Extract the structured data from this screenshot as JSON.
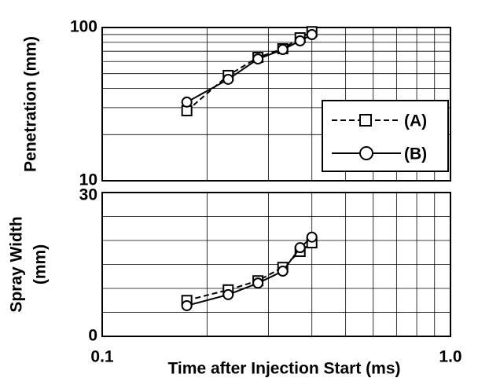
{
  "chart_data": [
    {
      "type": "line",
      "ylabel": [
        "Penetration (mm)"
      ],
      "x": [
        0.175,
        0.23,
        0.28,
        0.33,
        0.37,
        0.4
      ],
      "series": [
        {
          "name": "(A)",
          "color": "#000000",
          "marker": "square",
          "dash": true,
          "values": [
            28.6,
            48.7,
            63.8,
            72.7,
            85.7,
            94
          ]
        },
        {
          "name": "(B)",
          "color": "#000000",
          "marker": "circle",
          "dash": false,
          "values": [
            32.6,
            45.9,
            62.3,
            71.8,
            81.8,
            89.9
          ]
        }
      ],
      "xlim": [
        0.1,
        1
      ],
      "xlog": true,
      "ylim": [
        10,
        100
      ],
      "ylog": true,
      "yticks": [
        10,
        100
      ],
      "ygrid": [
        20,
        30,
        40,
        50,
        60,
        70,
        80,
        90
      ],
      "xgrid": [
        0.2,
        0.3,
        0.4,
        0.5,
        0.6,
        0.7,
        0.8,
        0.9
      ],
      "legend": "right"
    },
    {
      "type": "line",
      "ylabel": [
        "Spray Width",
        "(mm)"
      ],
      "xlabel": "Time after Injection Start (ms)",
      "x": [
        0.175,
        0.23,
        0.28,
        0.33,
        0.37,
        0.4
      ],
      "series": [
        {
          "name": "(A)",
          "color": "#000000",
          "marker": "square",
          "dash": true,
          "values": [
            7.5,
            9.7,
            11.6,
            14.4,
            17.7,
            19.5
          ]
        },
        {
          "name": "(B)",
          "color": "#000000",
          "marker": "circle",
          "dash": false,
          "values": [
            6.4,
            8.7,
            11.1,
            13.6,
            18.5,
            20.7
          ]
        }
      ],
      "xlim": [
        0.1,
        1
      ],
      "xlog": true,
      "ylim": [
        0,
        30
      ],
      "ylog": false,
      "yticks": [
        0,
        30
      ],
      "xticks": [
        0.1,
        {
          "value": 1,
          "label": "1.0"
        }
      ],
      "ygrid": [
        5,
        10,
        15,
        20,
        25
      ],
      "xgrid": [
        0.2,
        0.3,
        0.4,
        0.5,
        0.6,
        0.7,
        0.8,
        0.9
      ]
    }
  ]
}
